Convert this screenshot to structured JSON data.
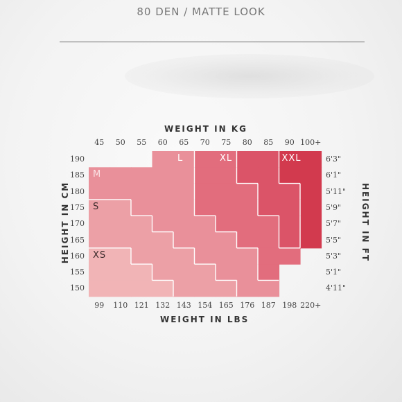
{
  "header": {
    "title": "80 DEN / MATTE LOOK"
  },
  "chart_data": {
    "type": "table",
    "title": "",
    "top_axis": {
      "label": "WEIGHT IN KG",
      "ticks": [
        "45",
        "50",
        "55",
        "60",
        "65",
        "70",
        "75",
        "80",
        "85",
        "90",
        "100+"
      ]
    },
    "bottom_axis": {
      "label": "WEIGHT IN LBS",
      "ticks": [
        "99",
        "110",
        "121",
        "132",
        "143",
        "154",
        "165",
        "176",
        "187",
        "198",
        "220+"
      ]
    },
    "left_axis": {
      "label": "HEIGHT IN CM",
      "ticks": [
        "190",
        "185",
        "180",
        "175",
        "170",
        "165",
        "160",
        "155",
        "150"
      ]
    },
    "right_axis": {
      "label": "HEIGHT IN FT",
      "ticks": [
        "6'3\"",
        "6'1\"",
        "5'11\"",
        "5'9\"",
        "5'7\"",
        "5'5\"",
        "5'3\"",
        "5'1\"",
        "4'11\""
      ]
    },
    "sizes": [
      {
        "name": "XS",
        "color": "#f1b4b6"
      },
      {
        "name": "S",
        "color": "#eca0a6"
      },
      {
        "name": "M",
        "color": "#e9909a"
      },
      {
        "name": "L",
        "color": "#e26d7d"
      },
      {
        "name": "XL",
        "color": "#db5468"
      },
      {
        "name": "XXL",
        "color": "#d23a4e"
      }
    ]
  }
}
